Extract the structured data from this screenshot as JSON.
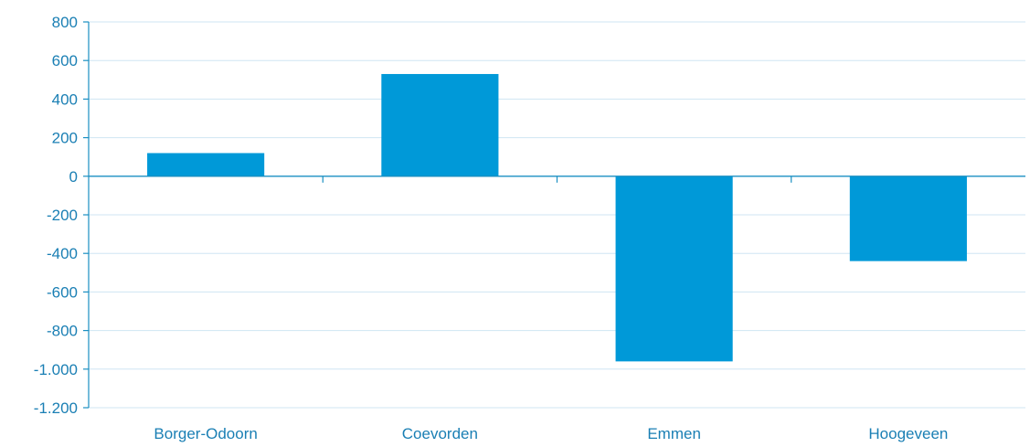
{
  "chart_data": {
    "type": "bar",
    "title": "",
    "xlabel": "",
    "ylabel": "",
    "categories": [
      "Borger-Odoorn",
      "Coevorden",
      "Emmen",
      "Hoogeveen"
    ],
    "values": [
      120,
      530,
      -960,
      -440
    ],
    "ylim": [
      -1200,
      800
    ],
    "yticks": [
      800,
      600,
      400,
      200,
      0,
      -200,
      -400,
      -600,
      -800,
      -1000,
      -1200
    ],
    "ytick_labels": [
      "800",
      "600",
      "400",
      "200",
      "0",
      "-200",
      "-400",
      "-600",
      "-800",
      "-1.000",
      "-1.200"
    ],
    "grid": true,
    "legend": "none",
    "colors": {
      "bar": "#0099d8",
      "axis": "#1a8fc2",
      "grid": "#cfe6f3",
      "text": "#1a7fb4"
    }
  }
}
